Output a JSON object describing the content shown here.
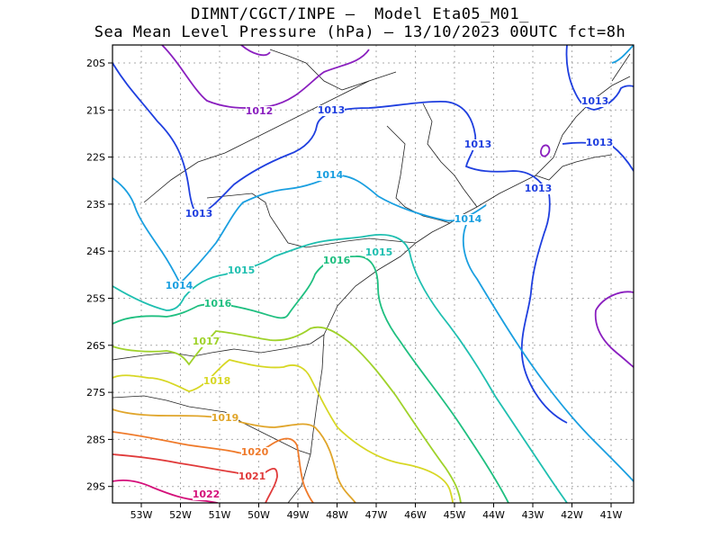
{
  "title_line1": "DIMNT/CGCT/INPE –  Model Eta05_M01_",
  "title_line2": "Sea Mean Level Pressure (hPa) – 13/10/2023 00UTC fct=8h",
  "x_ticks": [
    "53W",
    "52W",
    "51W",
    "50W",
    "49W",
    "48W",
    "47W",
    "46W",
    "45W",
    "44W",
    "43W",
    "42W",
    "41W"
  ],
  "y_ticks": [
    "20S",
    "21S",
    "22S",
    "23S",
    "24S",
    "25S",
    "26S",
    "27S",
    "28S",
    "29S"
  ],
  "contour_labels": [
    {
      "text": "1012",
      "color": "#8a1fbf"
    },
    {
      "text": "1013",
      "color": "#1f3fdf"
    },
    {
      "text": "1013",
      "color": "#1f3fdf"
    },
    {
      "text": "1013",
      "color": "#1f3fdf"
    },
    {
      "text": "1013",
      "color": "#1f3fdf"
    },
    {
      "text": "1013",
      "color": "#1f3fdf"
    },
    {
      "text": "1013",
      "color": "#1f3fdf"
    },
    {
      "text": "1014",
      "color": "#1a9fe0"
    },
    {
      "text": "1014",
      "color": "#1a9fe0"
    },
    {
      "text": "1014",
      "color": "#1a9fe0"
    },
    {
      "text": "1015",
      "color": "#1fbfb0"
    },
    {
      "text": "1015",
      "color": "#1fbfb0"
    },
    {
      "text": "1016",
      "color": "#1fbf80"
    },
    {
      "text": "1016",
      "color": "#1fbf80"
    },
    {
      "text": "1017",
      "color": "#9fd22a"
    },
    {
      "text": "1018",
      "color": "#d7d724"
    },
    {
      "text": "1019",
      "color": "#e0a52a"
    },
    {
      "text": "1020",
      "color": "#ef7a2a"
    },
    {
      "text": "1021",
      "color": "#e03a3a"
    },
    {
      "text": "1022",
      "color": "#d4107a"
    }
  ],
  "colors": {
    "1012": "#8a1fbf",
    "1013": "#1f3fdf",
    "1014": "#1a9fe0",
    "1015": "#1fbfb0",
    "1016": "#1fbf80",
    "1017": "#9fd22a",
    "1018": "#d7d724",
    "1019": "#e0a52a",
    "1020": "#ef7a2a",
    "1021": "#e03a3a",
    "1022": "#d4107a"
  }
}
